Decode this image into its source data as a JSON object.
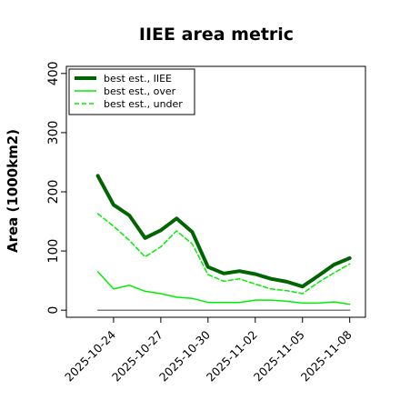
{
  "chart_data": {
    "type": "line",
    "title": "IIEE area metric",
    "xlabel": "",
    "ylabel": "Area (1000km2)",
    "x": [
      "2025-10-23",
      "2025-10-24",
      "2025-10-25",
      "2025-10-26",
      "2025-10-27",
      "2025-10-28",
      "2025-10-29",
      "2025-10-30",
      "2025-10-31",
      "2025-11-01",
      "2025-11-02",
      "2025-11-03",
      "2025-11-04",
      "2025-11-05",
      "2025-11-06",
      "2025-11-07",
      "2025-11-08"
    ],
    "xticks": [
      "2025-10-24",
      "2025-10-27",
      "2025-10-30",
      "2025-11-02",
      "2025-11-05",
      "2025-11-08"
    ],
    "yticks": [
      0,
      100,
      200,
      300,
      400
    ],
    "ylim": [
      -12,
      412
    ],
    "xlim": [
      "2025-10-21",
      "2025-11-09"
    ],
    "grid": false,
    "legend_position": "top-left",
    "series": [
      {
        "name": "best est., IIEE",
        "color": "#006400",
        "style": "solid",
        "width": "thick",
        "values": [
          227,
          178,
          160,
          122,
          135,
          155,
          132,
          73,
          62,
          66,
          61,
          53,
          48,
          40,
          58,
          77,
          88
        ]
      },
      {
        "name": "best est., over",
        "color": "#00ee00",
        "style": "solid",
        "width": "thin",
        "values": [
          65,
          36,
          42,
          32,
          28,
          22,
          20,
          13,
          13,
          13,
          17,
          17,
          15,
          12,
          12,
          14,
          10
        ]
      },
      {
        "name": "best est., under",
        "color": "#00ee00",
        "style": "dashed",
        "width": "thin",
        "values": [
          163,
          142,
          118,
          90,
          107,
          134,
          112,
          60,
          49,
          53,
          44,
          36,
          33,
          28,
          47,
          63,
          78
        ]
      },
      {
        "name": "",
        "color": "#808080",
        "style": "solid",
        "width": "thin",
        "values": [
          0,
          0,
          0,
          0,
          0,
          0,
          0,
          0,
          0,
          0,
          0,
          0,
          0,
          0,
          0,
          0,
          0
        ]
      }
    ]
  }
}
